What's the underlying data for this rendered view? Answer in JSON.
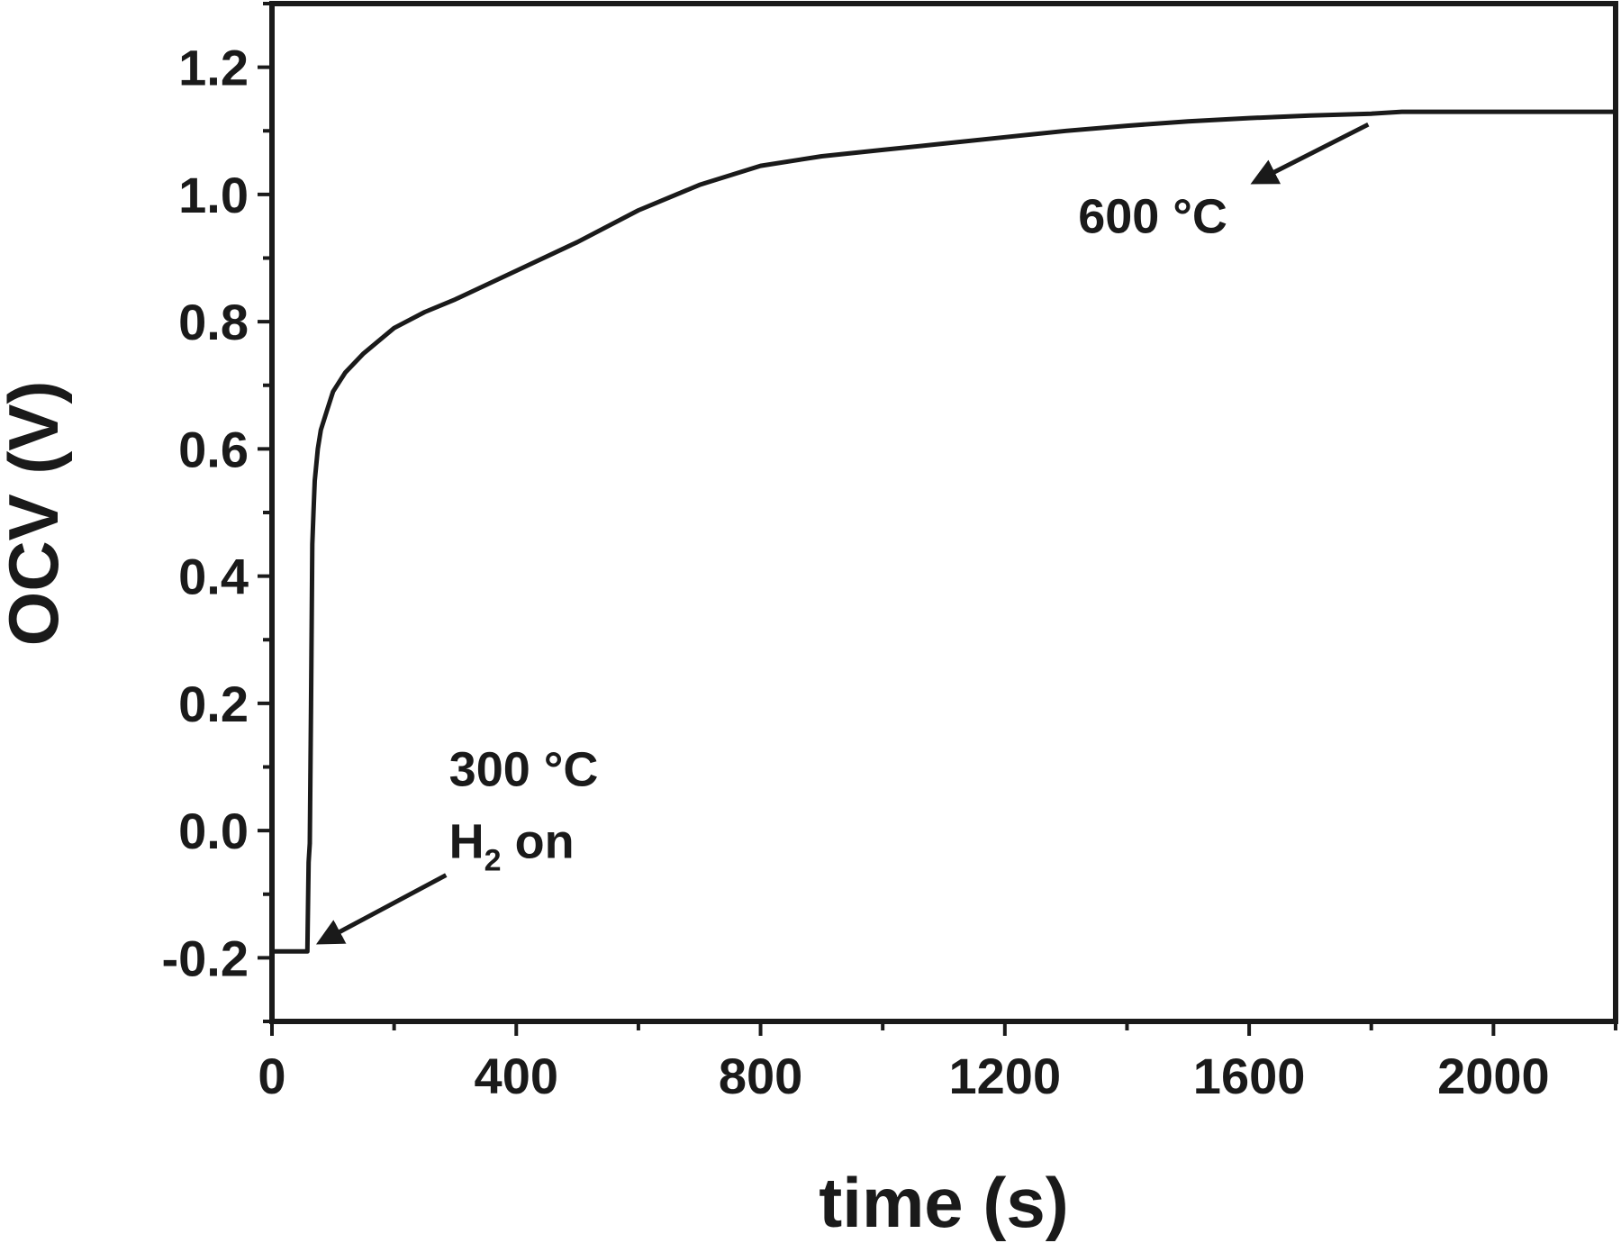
{
  "chart_data": {
    "type": "line",
    "title": "",
    "xlabel": "time (s)",
    "ylabel": "OCV (V)",
    "xlim": [
      0,
      2200
    ],
    "ylim": [
      -0.3,
      1.3
    ],
    "x_ticks": [
      0,
      400,
      800,
      1200,
      1600,
      2000
    ],
    "y_ticks": [
      -0.2,
      0.0,
      0.2,
      0.4,
      0.6,
      0.8,
      1.0,
      1.2
    ],
    "x_tick_labels": [
      "0",
      "400",
      "800",
      "1200",
      "1600",
      "2000"
    ],
    "y_tick_labels": [
      "-0.2",
      "0.0",
      "0.2",
      "0.4",
      "0.6",
      "0.8",
      "1.0",
      "1.2"
    ],
    "grid": false,
    "legend": "none",
    "line_color": "#1a1a1a",
    "series": [
      {
        "x": [
          0,
          30,
          58,
          60,
          62,
          64,
          66,
          68,
          70,
          75,
          80,
          90,
          100,
          120,
          150,
          200,
          250,
          300,
          400,
          500,
          600,
          700,
          800,
          900,
          1000,
          1100,
          1200,
          1300,
          1400,
          1500,
          1600,
          1700,
          1800,
          1850,
          1900,
          2000,
          2100,
          2200
        ],
        "y": [
          -0.19,
          -0.19,
          -0.19,
          -0.05,
          -0.02,
          0.2,
          0.45,
          0.5,
          0.55,
          0.6,
          0.63,
          0.66,
          0.69,
          0.72,
          0.75,
          0.79,
          0.815,
          0.835,
          0.88,
          0.925,
          0.975,
          1.015,
          1.045,
          1.06,
          1.07,
          1.08,
          1.09,
          1.1,
          1.108,
          1.115,
          1.12,
          1.124,
          1.127,
          1.13,
          1.13,
          1.13,
          1.13,
          1.13
        ]
      }
    ],
    "annotations": [
      {
        "lines": [
          "300 °C",
          "H2 on"
        ],
        "text_x": 290,
        "text_y": 0.07,
        "arrow_from": [
          285,
          -0.07
        ],
        "arrow_to": [
          80,
          -0.175
        ]
      },
      {
        "lines": [
          "600 °C"
        ],
        "text_x": 1320,
        "text_y": 0.94,
        "arrow_from": [
          1795,
          1.11
        ],
        "arrow_to": [
          1610,
          1.02
        ]
      }
    ]
  }
}
